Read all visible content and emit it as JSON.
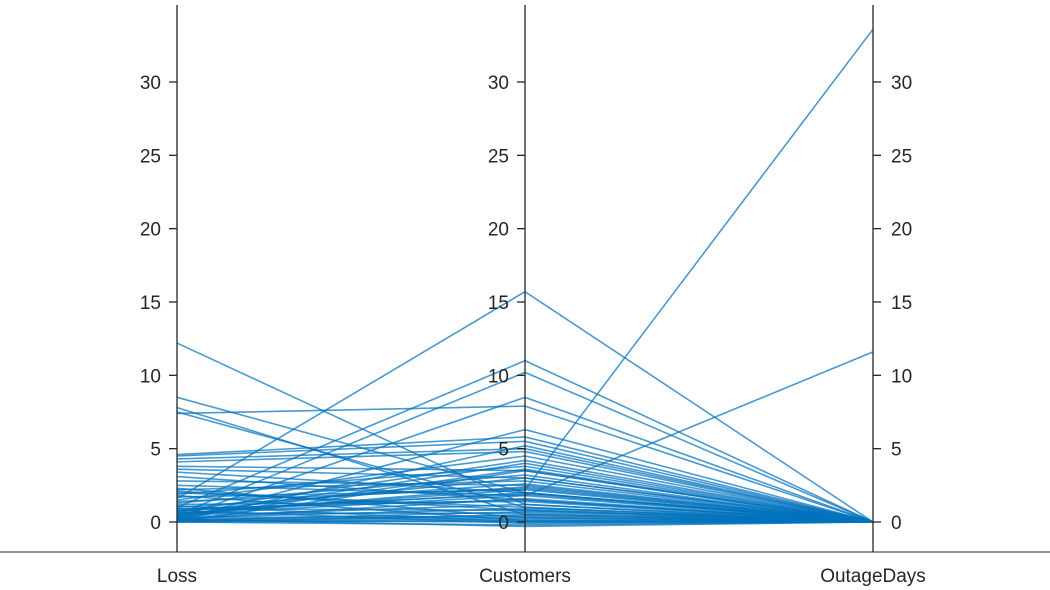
{
  "chart_data": {
    "type": "parallel-coordinates",
    "axes": [
      "Loss",
      "Customers",
      "OutageDays"
    ],
    "ylim": [
      -2,
      35
    ],
    "yticks": [
      0,
      5,
      10,
      15,
      20,
      25,
      30
    ],
    "line_color": "#0072BD",
    "axis_color": "#262626",
    "grid": false,
    "legend": "none",
    "rows": [
      [
        12.2,
        1.2,
        0
      ],
      [
        8.5,
        2.0,
        0
      ],
      [
        7.8,
        0.5,
        0
      ],
      [
        7.5,
        1.0,
        0
      ],
      [
        7.4,
        7.9,
        0
      ],
      [
        4.6,
        5.8,
        0
      ],
      [
        4.5,
        5.5,
        0
      ],
      [
        4.3,
        5.0,
        0
      ],
      [
        4.1,
        4.8,
        0
      ],
      [
        3.8,
        3.5,
        0
      ],
      [
        3.6,
        3.0,
        0
      ],
      [
        3.4,
        2.0,
        0
      ],
      [
        3.1,
        1.5,
        0
      ],
      [
        2.8,
        2.5,
        0
      ],
      [
        2.5,
        1.8,
        0
      ],
      [
        2.2,
        2.8,
        0
      ],
      [
        2.0,
        1.0,
        0
      ],
      [
        1.9,
        3.8,
        0
      ],
      [
        1.7,
        2.2,
        0
      ],
      [
        1.5,
        4.5,
        0
      ],
      [
        1.3,
        3.2,
        0
      ],
      [
        1.2,
        1.4,
        0
      ],
      [
        1.0,
        2.6,
        0
      ],
      [
        0.9,
        0.8,
        0
      ],
      [
        0.8,
        1.9,
        0
      ],
      [
        0.7,
        3.0,
        0
      ],
      [
        0.6,
        0.6,
        0
      ],
      [
        0.5,
        2.4,
        0
      ],
      [
        0.4,
        1.2,
        0
      ],
      [
        0.3,
        0.9,
        0
      ],
      [
        0.3,
        0.4,
        0
      ],
      [
        0.2,
        1.6,
        0
      ],
      [
        0.2,
        0.3,
        0
      ],
      [
        0.1,
        0.7,
        0
      ],
      [
        0.1,
        0.2,
        0
      ],
      [
        0.0,
        0.1,
        0
      ],
      [
        0.0,
        0.5,
        0
      ],
      [
        0.0,
        -0.2,
        0
      ],
      [
        0.2,
        -0.3,
        0
      ],
      [
        0.1,
        0.0,
        0
      ],
      [
        1.6,
        15.7,
        0
      ],
      [
        1.0,
        11.0,
        0
      ],
      [
        0.5,
        10.2,
        0
      ],
      [
        0.3,
        8.5,
        0
      ],
      [
        0.2,
        6.3,
        0
      ],
      [
        0.1,
        5.2,
        0
      ],
      [
        0.4,
        4.0,
        0
      ],
      [
        0.6,
        2.2,
        33.6
      ],
      [
        0.5,
        1.8,
        11.6
      ],
      [
        0.0,
        3.5,
        0
      ],
      [
        2.1,
        0.8,
        0
      ],
      [
        2.3,
        0.3,
        0
      ],
      [
        1.8,
        0.1,
        0
      ],
      [
        1.1,
        0.0,
        0
      ],
      [
        0.8,
        -0.1,
        0
      ],
      [
        0.6,
        2.0,
        0
      ],
      [
        0.9,
        1.5,
        0
      ],
      [
        1.4,
        2.3,
        0
      ],
      [
        0.7,
        4.2,
        0
      ],
      [
        0.3,
        3.6,
        0
      ]
    ]
  }
}
